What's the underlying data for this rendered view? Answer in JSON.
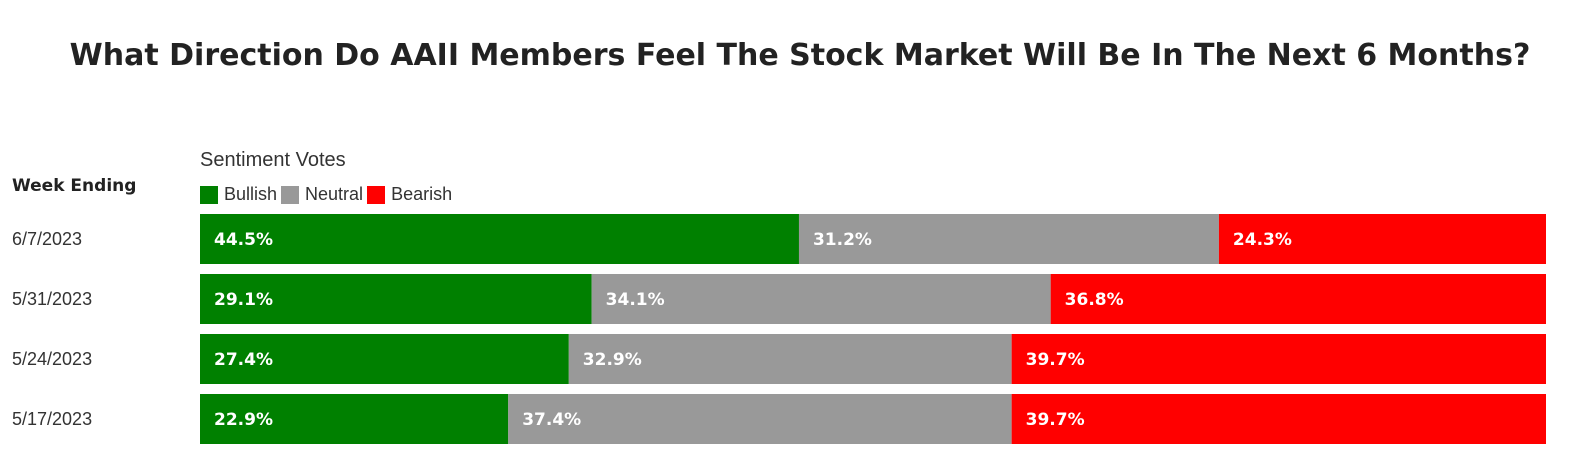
{
  "chart_data": {
    "type": "bar",
    "orientation": "horizontal",
    "stacked": true,
    "normalized": true,
    "title": "What Direction Do AAII Members Feel The Stock Market Will Be In The Next 6 Months?",
    "row_header": "Week Ending",
    "legend_title": "Sentiment Votes",
    "legend_placement": "top-left",
    "categories": [
      "6/7/2023",
      "5/31/2023",
      "5/24/2023",
      "5/17/2023"
    ],
    "series": [
      {
        "name": "Bullish",
        "color": "#008000",
        "values": [
          44.5,
          29.1,
          27.4,
          22.9
        ],
        "labels": [
          "44.5%",
          "29.1%",
          "27.4%",
          "22.9%"
        ]
      },
      {
        "name": "Neutral",
        "color": "#999999",
        "values": [
          31.2,
          34.1,
          32.9,
          37.4
        ],
        "labels": [
          "31.2%",
          "34.1%",
          "32.9%",
          "37.4%"
        ]
      },
      {
        "name": "Bearish",
        "color": "#ff0000",
        "values": [
          24.3,
          36.8,
          39.7,
          39.7
        ],
        "labels": [
          "24.3%",
          "36.8%",
          "39.7%",
          "39.7%"
        ]
      }
    ]
  }
}
